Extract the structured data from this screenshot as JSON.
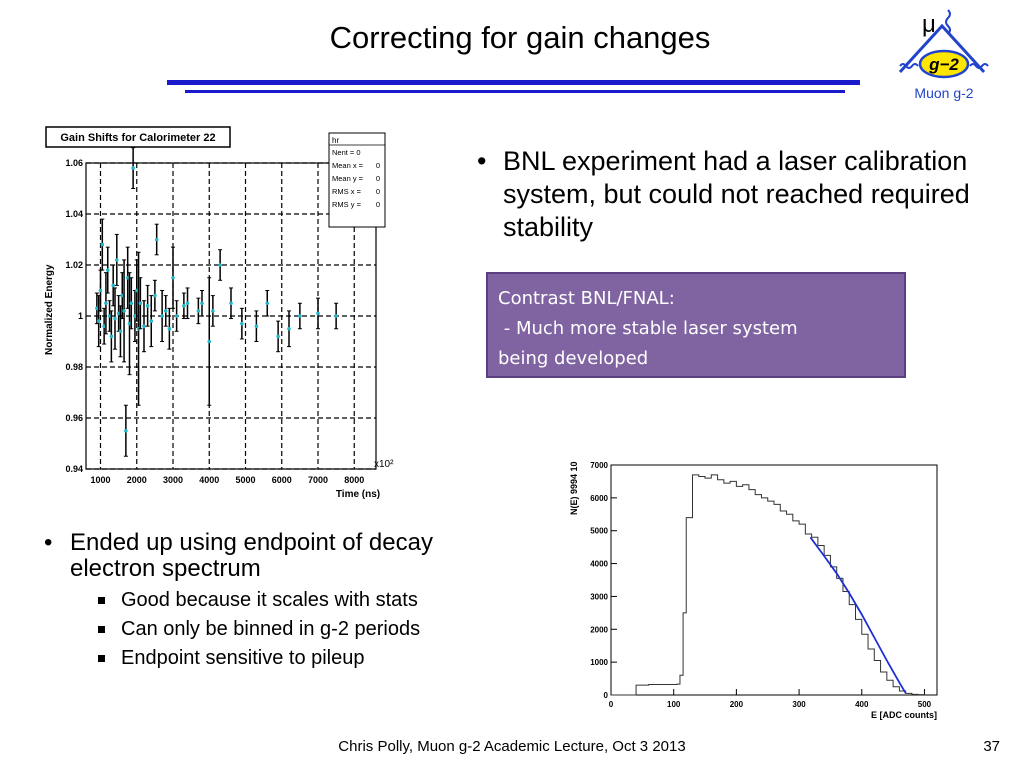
{
  "slide": {
    "title": "Correcting for gain changes",
    "footer": "Chris Polly, Muon g-2 Academic Lecture, Oct 3 2013",
    "page_number": "37"
  },
  "logo": {
    "mu": "μ",
    "badge": "g−2",
    "caption": "Muon g-2",
    "colors": {
      "stroke": "#2244cc",
      "badge": "#ffe600"
    }
  },
  "bullets_top": [
    {
      "text": "BNL experiment had a laser calibration system, but could not reached required stability"
    }
  ],
  "callout": {
    "lines": [
      "Contrast BNL/FNAL:",
      " - Much more stable laser system",
      "being developed"
    ],
    "color": "#8064a2"
  },
  "bullets_bottom": {
    "main": "Ended up using endpoint of decay electron spectrum",
    "sub": [
      "Good because it scales with stats",
      "Can only be binned in g-2 periods",
      "Endpoint sensitive to pileup"
    ]
  },
  "chart_data": [
    {
      "type": "scatter",
      "title": "Gain Shifts for Calorimeter 22",
      "xlabel": "Time (ns)",
      "ylabel": "Normalized Energy",
      "x_multiplier": "x10²",
      "xlim": [
        600,
        8600
      ],
      "ylim": [
        0.94,
        1.06
      ],
      "xticks": [
        "1000",
        "2000",
        "3000",
        "4000",
        "5000",
        "6000",
        "7000",
        "8000"
      ],
      "yticks": [
        "0.94",
        "0.96",
        "0.98",
        "1",
        "1.02",
        "1.04",
        "1.06"
      ],
      "grid": true,
      "stats_box": {
        "title": "hr",
        "rows": [
          [
            "Nent = 0",
            ""
          ],
          [
            "Mean x =",
            "0"
          ],
          [
            "Mean y =",
            "0"
          ],
          [
            "RMS x =",
            "0"
          ],
          [
            "RMS y =",
            "0"
          ]
        ]
      },
      "points": [
        {
          "x": 900,
          "y": 1.003,
          "e": 0.006
        },
        {
          "x": 950,
          "y": 0.998,
          "e": 0.01
        },
        {
          "x": 1000,
          "y": 1.01,
          "e": 0.008
        },
        {
          "x": 1050,
          "y": 1.028,
          "e": 0.01
        },
        {
          "x": 1100,
          "y": 0.996,
          "e": 0.007
        },
        {
          "x": 1150,
          "y": 1.005,
          "e": 0.012
        },
        {
          "x": 1200,
          "y": 1.018,
          "e": 0.009
        },
        {
          "x": 1250,
          "y": 1.0,
          "e": 0.006
        },
        {
          "x": 1300,
          "y": 0.992,
          "e": 0.01
        },
        {
          "x": 1350,
          "y": 1.012,
          "e": 0.008
        },
        {
          "x": 1400,
          "y": 0.999,
          "e": 0.012
        },
        {
          "x": 1450,
          "y": 1.022,
          "e": 0.01
        },
        {
          "x": 1500,
          "y": 1.001,
          "e": 0.007
        },
        {
          "x": 1550,
          "y": 0.994,
          "e": 0.01
        },
        {
          "x": 1600,
          "y": 1.008,
          "e": 0.009
        },
        {
          "x": 1650,
          "y": 1.002,
          "e": 0.02
        },
        {
          "x": 1700,
          "y": 0.955,
          "e": 0.01
        },
        {
          "x": 1750,
          "y": 1.015,
          "e": 0.012
        },
        {
          "x": 1800,
          "y": 0.997,
          "e": 0.02
        },
        {
          "x": 1850,
          "y": 1.005,
          "e": 0.01
        },
        {
          "x": 1900,
          "y": 1.058,
          "e": 0.008
        },
        {
          "x": 1950,
          "y": 1.0,
          "e": 0.01
        },
        {
          "x": 2000,
          "y": 1.01,
          "e": 0.012
        },
        {
          "x": 2050,
          "y": 0.995,
          "e": 0.03
        },
        {
          "x": 2100,
          "y": 1.005,
          "e": 0.01
        },
        {
          "x": 2200,
          "y": 0.996,
          "e": 0.01
        },
        {
          "x": 2300,
          "y": 1.004,
          "e": 0.008
        },
        {
          "x": 2400,
          "y": 0.998,
          "e": 0.01
        },
        {
          "x": 2500,
          "y": 1.008,
          "e": 0.006
        },
        {
          "x": 2550,
          "y": 1.03,
          "e": 0.006
        },
        {
          "x": 2700,
          "y": 1.0,
          "e": 0.01
        },
        {
          "x": 2800,
          "y": 1.002,
          "e": 0.006
        },
        {
          "x": 2900,
          "y": 0.995,
          "e": 0.008
        },
        {
          "x": 3000,
          "y": 1.015,
          "e": 0.012
        },
        {
          "x": 3100,
          "y": 1.0,
          "e": 0.006
        },
        {
          "x": 3300,
          "y": 1.004,
          "e": 0.005
        },
        {
          "x": 3400,
          "y": 1.005,
          "e": 0.006
        },
        {
          "x": 3700,
          "y": 1.002,
          "e": 0.005
        },
        {
          "x": 3800,
          "y": 1.005,
          "e": 0.005
        },
        {
          "x": 4000,
          "y": 0.99,
          "e": 0.025
        },
        {
          "x": 4100,
          "y": 1.002,
          "e": 0.006
        },
        {
          "x": 4300,
          "y": 1.02,
          "e": 0.006
        },
        {
          "x": 4600,
          "y": 1.005,
          "e": 0.006
        },
        {
          "x": 4900,
          "y": 0.997,
          "e": 0.006
        },
        {
          "x": 5300,
          "y": 0.996,
          "e": 0.006
        },
        {
          "x": 5600,
          "y": 1.005,
          "e": 0.005
        },
        {
          "x": 5900,
          "y": 0.992,
          "e": 0.006
        },
        {
          "x": 6200,
          "y": 0.995,
          "e": 0.007
        },
        {
          "x": 6500,
          "y": 1.0,
          "e": 0.005
        },
        {
          "x": 7000,
          "y": 1.001,
          "e": 0.006
        },
        {
          "x": 7500,
          "y": 1.0,
          "e": 0.005
        }
      ]
    },
    {
      "type": "line",
      "xlabel": "E [ADC counts]",
      "ylabel": "N(E) 9994 10",
      "xlim": [
        0,
        520
      ],
      "ylim": [
        0,
        7000
      ],
      "xticks": [
        "0",
        "100",
        "200",
        "300",
        "400",
        "500"
      ],
      "yticks": [
        "0",
        "1000",
        "2000",
        "3000",
        "4000",
        "5000",
        "6000",
        "7000"
      ],
      "colors": {
        "histogram": "#333333",
        "fit": "#1f2fd6"
      },
      "series": [
        {
          "x": [
            0,
            30,
            40,
            60,
            90,
            105,
            110,
            115,
            120,
            130,
            140,
            150,
            160,
            170,
            180,
            190,
            200,
            210,
            220,
            230,
            240,
            250,
            260,
            270,
            280,
            290,
            300,
            310,
            320,
            330,
            340,
            350,
            360,
            370,
            380,
            390,
            400,
            410,
            420,
            430,
            440,
            450,
            460,
            470,
            480,
            490,
            500
          ],
          "values": [
            0,
            0,
            300,
            320,
            320,
            330,
            600,
            2500,
            5400,
            6700,
            6650,
            6600,
            6700,
            6550,
            6450,
            6500,
            6350,
            6400,
            6250,
            6100,
            6000,
            5900,
            5800,
            5600,
            5500,
            5300,
            5200,
            4900,
            4800,
            4550,
            4250,
            3900,
            3550,
            3150,
            2750,
            2300,
            1850,
            1400,
            1050,
            700,
            450,
            250,
            120,
            50,
            20,
            10,
            0
          ]
        },
        {
          "x": [
            318,
            340,
            360,
            380,
            400,
            420,
            440,
            460,
            470
          ],
          "values": [
            4800,
            4230,
            3700,
            3100,
            2450,
            1750,
            1050,
            380,
            60
          ]
        }
      ]
    }
  ]
}
